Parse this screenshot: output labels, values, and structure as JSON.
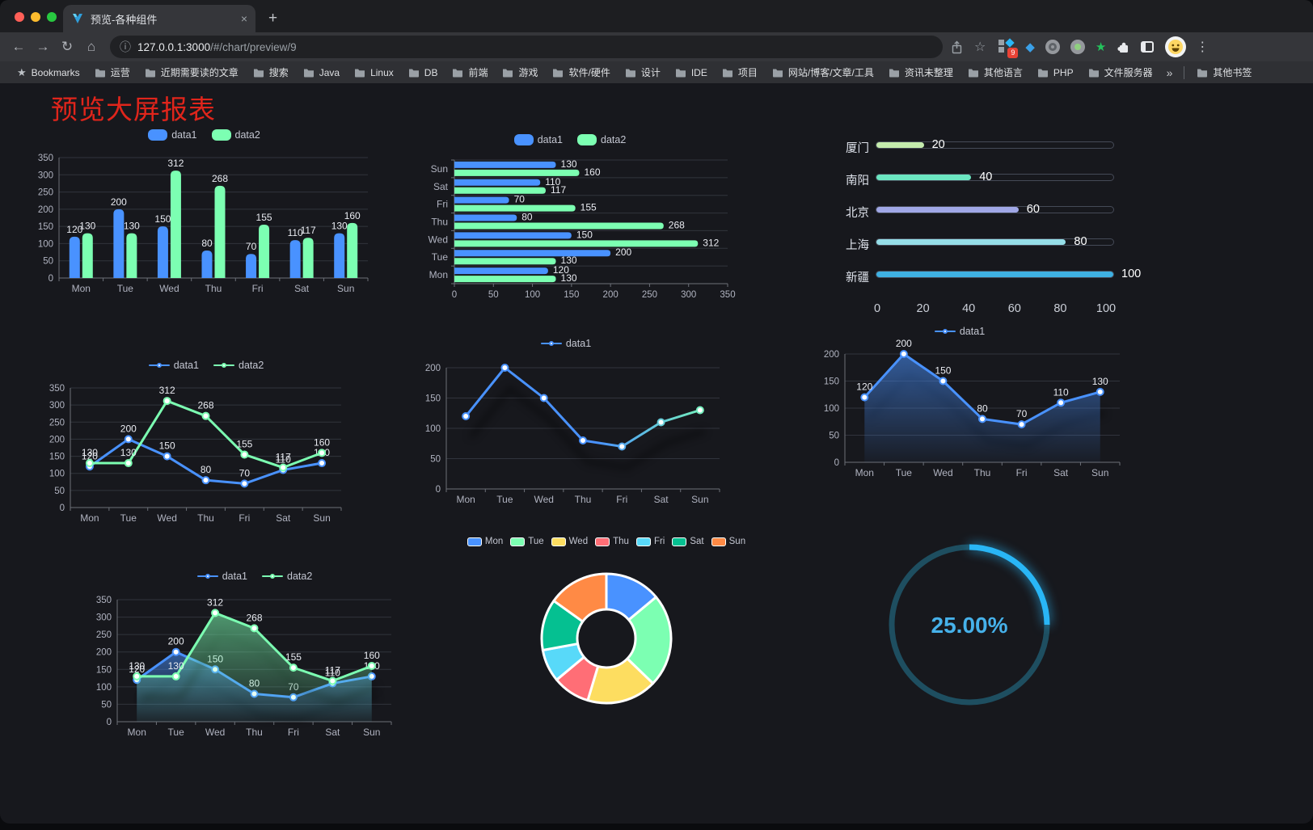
{
  "browser": {
    "tab": {
      "title": "预览-各种组件"
    },
    "url": {
      "host": "127.0.0.1:3000",
      "path": "/#/chart/preview/9"
    },
    "icons": {
      "back": "←",
      "forward": "→",
      "reload": "↻",
      "home": "⌂",
      "info": "ⓘ",
      "star": "☆",
      "menu": "⋮",
      "close_tab": "×",
      "new_tab": "+",
      "gem": "◆",
      "green_star": "★",
      "bookmarks_star": "★"
    },
    "extension_badge": "9",
    "bookmarks": {
      "bar_label": "Bookmarks",
      "folders": [
        "运营",
        "近期需要读的文章",
        "搜索",
        "Java",
        "Linux",
        "DB",
        "前端",
        "游戏",
        "软件/硬件",
        "设计",
        "IDE",
        "项目",
        "网站/博客/文章/工具",
        "资讯未整理",
        "其他语言",
        "PHP",
        "文件服务器"
      ],
      "overflow": "»",
      "other_label": "其他书签"
    }
  },
  "page": {
    "title": "预览大屏报表",
    "title_color": "#e0251b"
  },
  "palette": {
    "traffic_close": "#ff5f57",
    "traffic_min": "#febc2e",
    "traffic_zoom": "#28c840",
    "series_blue": "#4992ff",
    "series_green": "#7cffb2",
    "gauge_blue": "#29b6f6",
    "page_background": "#17181d"
  },
  "chart_style": {
    "axis_label": "#b0b3c0",
    "grid_line": "#31343d",
    "axis_line": "#6c7078",
    "value_label": "#e9ebf1",
    "legend_text": "#c3c6d1"
  },
  "chart_data": [
    {
      "id": "grouped-bar",
      "type": "bar",
      "categories": [
        "Mon",
        "Tue",
        "Wed",
        "Thu",
        "Fri",
        "Sat",
        "Sun"
      ],
      "series": [
        {
          "name": "data1",
          "color": "#4992ff",
          "values": [
            120,
            200,
            150,
            80,
            70,
            110,
            130
          ]
        },
        {
          "name": "data2",
          "color": "#7cffb2",
          "values": [
            130,
            130,
            312,
            268,
            155,
            117,
            160
          ]
        }
      ],
      "yticks": [
        0,
        50,
        100,
        150,
        200,
        250,
        300,
        350
      ],
      "ylim": [
        0,
        350
      ],
      "value_labels": true
    },
    {
      "id": "grouped-hbar",
      "type": "hbar",
      "categories_top_to_bottom": [
        "Sun",
        "Sat",
        "Fri",
        "Thu",
        "Wed",
        "Tue",
        "Mon"
      ],
      "series": [
        {
          "name": "data1",
          "color": "#4992ff",
          "values_top_to_bottom": [
            130,
            110,
            70,
            80,
            150,
            200,
            120
          ]
        },
        {
          "name": "data2",
          "color": "#7cffb2",
          "values_top_to_bottom": [
            160,
            117,
            155,
            268,
            312,
            130,
            130
          ]
        }
      ],
      "xticks": [
        0,
        50,
        100,
        150,
        200,
        250,
        300,
        350
      ],
      "xlim": [
        0,
        350
      ],
      "value_labels": true
    },
    {
      "id": "city-progress",
      "type": "progress",
      "items": [
        {
          "label": "厦门",
          "value": 20,
          "color": "#c4ebad"
        },
        {
          "label": "南阳",
          "value": 40,
          "color": "#6be6c1"
        },
        {
          "label": "北京",
          "value": 60,
          "color": "#a0a7e6"
        },
        {
          "label": "上海",
          "value": 80,
          "color": "#96dee8"
        },
        {
          "label": "新疆",
          "value": 100,
          "color": "#3fb1e3"
        }
      ],
      "xticks": [
        0,
        20,
        40,
        60,
        80,
        100
      ],
      "xlim": [
        0,
        100
      ]
    },
    {
      "id": "line-two-series",
      "type": "line",
      "categories": [
        "Mon",
        "Tue",
        "Wed",
        "Thu",
        "Fri",
        "Sat",
        "Sun"
      ],
      "series": [
        {
          "name": "data1",
          "color": "#4992ff",
          "values": [
            120,
            200,
            150,
            80,
            70,
            110,
            130
          ]
        },
        {
          "name": "data2",
          "color": "#7cffb2",
          "values": [
            130,
            130,
            312,
            268,
            155,
            117,
            160
          ]
        }
      ],
      "yticks": [
        0,
        50,
        100,
        150,
        200,
        250,
        300,
        350
      ],
      "ylim": [
        0,
        350
      ],
      "value_labels": true,
      "area": false,
      "shadow": false
    },
    {
      "id": "line-gradient",
      "type": "line",
      "categories": [
        "Mon",
        "Tue",
        "Wed",
        "Thu",
        "Fri",
        "Sat",
        "Sun"
      ],
      "series": [
        {
          "name": "data1",
          "color": "#4992ff",
          "color_end": "#7cffb2",
          "values": [
            120,
            200,
            150,
            80,
            70,
            110,
            130
          ]
        }
      ],
      "yticks": [
        0,
        50,
        100,
        150,
        200
      ],
      "ylim": [
        0,
        200
      ],
      "value_labels": false,
      "area": false,
      "shadow": true
    },
    {
      "id": "line-area-single",
      "type": "line",
      "categories": [
        "Mon",
        "Tue",
        "Wed",
        "Thu",
        "Fri",
        "Sat",
        "Sun"
      ],
      "series": [
        {
          "name": "data1",
          "color": "#4992ff",
          "values": [
            120,
            200,
            150,
            80,
            70,
            110,
            130
          ]
        }
      ],
      "yticks": [
        0,
        50,
        100,
        150,
        200
      ],
      "ylim": [
        0,
        200
      ],
      "value_labels": true,
      "area": true,
      "shadow": true
    },
    {
      "id": "line-area-double",
      "type": "line",
      "categories": [
        "Mon",
        "Tue",
        "Wed",
        "Thu",
        "Fri",
        "Sat",
        "Sun"
      ],
      "series": [
        {
          "name": "data1",
          "color": "#4992ff",
          "values": [
            120,
            200,
            150,
            80,
            70,
            110,
            130
          ]
        },
        {
          "name": "data2",
          "color": "#7cffb2",
          "values": [
            130,
            130,
            312,
            268,
            155,
            117,
            160
          ]
        }
      ],
      "yticks": [
        0,
        50,
        100,
        150,
        200,
        250,
        300,
        350
      ],
      "ylim": [
        0,
        350
      ],
      "value_labels": true,
      "area": true,
      "shadow": true
    },
    {
      "id": "donut-pie",
      "type": "pie",
      "slices": [
        {
          "label": "Mon",
          "value": 120,
          "color": "#4992ff"
        },
        {
          "label": "Tue",
          "value": 200,
          "color": "#7cffb2"
        },
        {
          "label": "Wed",
          "value": 150,
          "color": "#fddd60"
        },
        {
          "label": "Thu",
          "value": 80,
          "color": "#ff6e76"
        },
        {
          "label": "Fri",
          "value": 70,
          "color": "#58d9f9"
        },
        {
          "label": "Sat",
          "value": 110,
          "color": "#05c091"
        },
        {
          "label": "Sun",
          "value": 130,
          "color": "#ff8a45"
        }
      ]
    },
    {
      "id": "progress-gauge",
      "type": "gauge",
      "percent": 25,
      "display": "25.00%",
      "color": "#29b6f6",
      "track_color": "#1e4e60"
    }
  ]
}
